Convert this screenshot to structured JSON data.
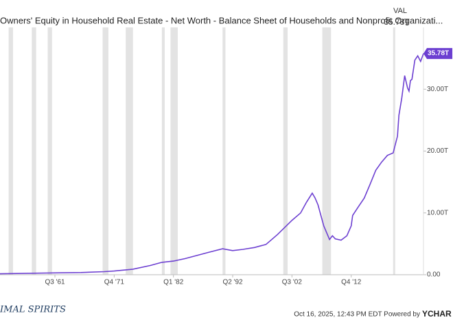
{
  "chart_data": {
    "type": "line",
    "title": "Owners' Equity in Household Real Estate - Net Worth - Balance Sheet of Households and Nonprofit Organizati...",
    "value_header": "VAL",
    "brand": "IMAL SPIRITS",
    "footer": "Oct 16, 2025, 12:43 PM EDT Powered by",
    "footer_brand": "YCHAR",
    "x": [
      "Q1 '52",
      "Q3 '61",
      "Q1 '66",
      "Q1 '70",
      "Q4 '71",
      "Q1 '75",
      "Q1 '78",
      "Q1 '80",
      "Q1 '82",
      "Q1 '84",
      "Q1 '86",
      "Q1 '88",
      "Q3 '90",
      "Q2 '92",
      "Q1 '94",
      "Q1 '96",
      "Q1 '98",
      "Q1 '00",
      "Q3 '02",
      "Q1 '04",
      "Q1 '05",
      "Q1 '06",
      "Q3 '06",
      "Q1 '07",
      "Q1 '08",
      "Q1 '09",
      "Q3 '09",
      "Q1 '10",
      "Q1 '11",
      "Q1 '12",
      "Q4 '12",
      "Q1 '13",
      "Q1 '14",
      "Q1 '15",
      "Q1 '16",
      "Q1 '17",
      "Q1 '18",
      "Q1 '19",
      "Q1 '20",
      "Q4 '20",
      "Q1 '21",
      "Q3 '21",
      "Q1 '22",
      "Q3 '22",
      "Q4 '22",
      "Q1 '23",
      "Q2 '23",
      "Q4 '23",
      "Q2 '24",
      "Q4 '24",
      "Q2 '25"
    ],
    "series": [
      {
        "name": "Owners' Equity in Household Real Estate",
        "color": "#6c3fd1",
        "values": [
          0.15,
          0.3,
          0.35,
          0.5,
          0.6,
          0.9,
          1.5,
          2.0,
          2.2,
          2.6,
          3.1,
          3.6,
          4.2,
          3.9,
          4.1,
          4.4,
          4.9,
          6.5,
          8.8,
          10.0,
          11.7,
          13.2,
          12.4,
          11.3,
          7.9,
          5.7,
          6.3,
          5.8,
          5.6,
          6.3,
          7.9,
          9.6,
          11.0,
          12.4,
          14.6,
          16.9,
          18.2,
          19.3,
          19.7,
          22.4,
          25.8,
          28.6,
          32.2,
          30.2,
          29.7,
          31.4,
          31.6,
          34.7,
          35.4,
          34.5,
          35.78
        ],
        "value_labels": [
          null,
          null,
          null,
          null,
          null,
          null,
          null,
          null,
          null,
          null,
          null,
          null,
          null,
          null,
          null,
          null,
          null,
          null,
          null,
          null,
          null,
          null,
          null,
          null,
          null,
          null,
          null,
          null,
          null,
          null,
          null,
          null,
          null,
          null,
          null,
          null,
          null,
          null,
          null,
          null,
          null,
          null,
          null,
          null,
          null,
          null,
          null,
          null,
          null,
          null,
          "35.78T"
        ]
      }
    ],
    "recessions": [
      [
        "Q3 '53",
        "Q2 '54"
      ],
      [
        "Q3 '57",
        "Q2 '58"
      ],
      [
        "Q2 '60",
        "Q1 '61"
      ],
      [
        "Q4 '69",
        "Q4 '70"
      ],
      [
        "Q4 '73",
        "Q1 '75"
      ],
      [
        "Q1 '80",
        "Q3 '80"
      ],
      [
        "Q3 '81",
        "Q4 '82"
      ],
      [
        "Q3 '90",
        "Q1 '91"
      ],
      [
        "Q1 '01",
        "Q4 '01"
      ],
      [
        "Q4 '07",
        "Q2 '09"
      ],
      [
        "Q1 '20",
        "Q2 '20"
      ]
    ],
    "recession_color": "#e3e3e3",
    "xlim": [
      "Q1 '52",
      "Q2 '25"
    ],
    "xticks": [
      "Q3 '61",
      "Q4 '71",
      "Q1 '82",
      "Q2 '92",
      "Q3 '02",
      "Q4 '12"
    ],
    "ylim": [
      0,
      40
    ],
    "yticks": [
      {
        "value": 0,
        "label": "0.00"
      },
      {
        "value": 10,
        "label": "10.00T"
      },
      {
        "value": 20,
        "label": "20.00T"
      },
      {
        "value": 30,
        "label": "30.00T"
      }
    ]
  }
}
